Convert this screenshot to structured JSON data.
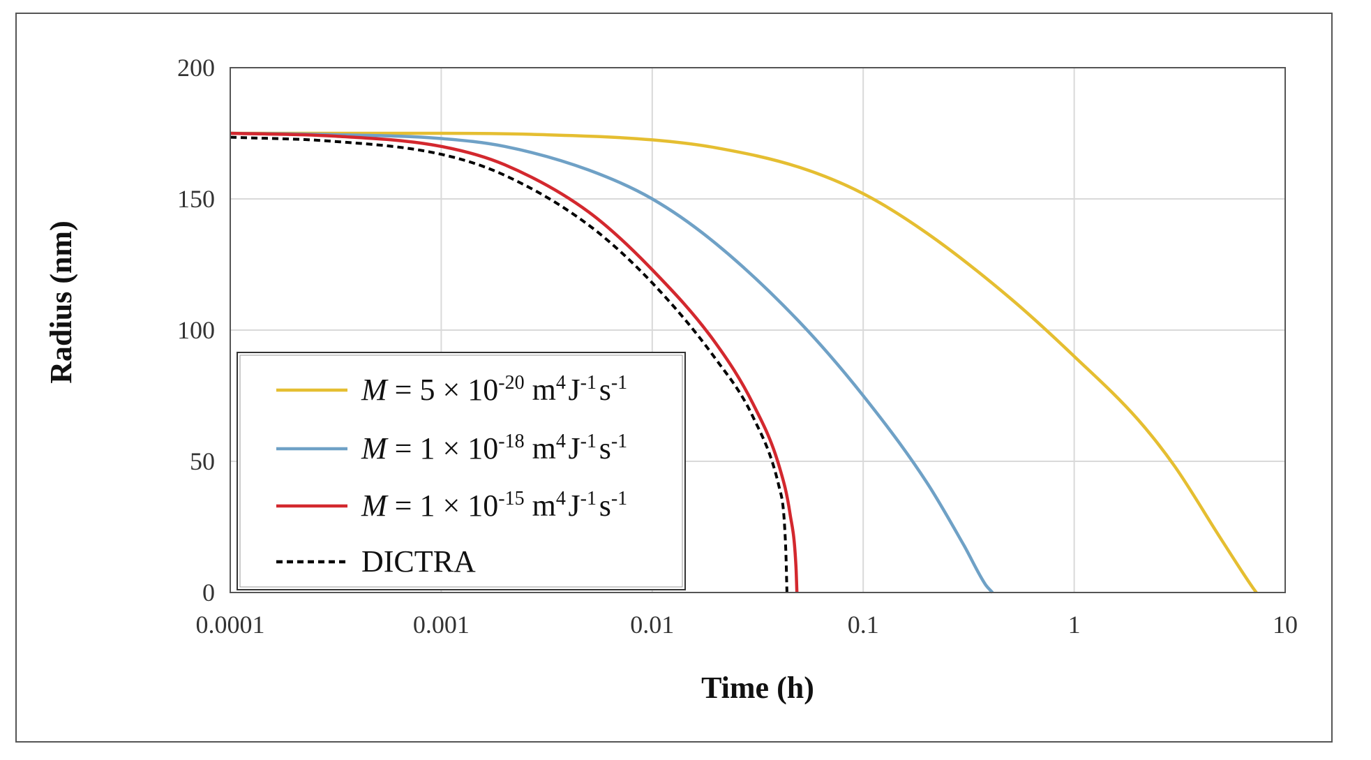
{
  "chart_data": {
    "type": "line",
    "title": "",
    "xlabel": "Time (h)",
    "ylabel": "Radius (nm)",
    "xscale": "log",
    "xlim": [
      0.0001,
      10
    ],
    "ylim": [
      0,
      200
    ],
    "x_ticks": [
      "0.0001",
      "0.001",
      "0.01",
      "0.1",
      "1",
      "10"
    ],
    "y_ticks": [
      "0",
      "50",
      "100",
      "150",
      "200"
    ],
    "grid": true,
    "legend_position": "bottom-left",
    "series": [
      {
        "name": "M = 5 × 10-20 m4J-1s-1",
        "label_parts": {
          "sym": "M",
          "base": " = 5 × 10",
          "exp": "-20",
          "unit": [
            [
              "m",
              "4"
            ],
            [
              "J",
              "-1"
            ],
            [
              "s",
              "-1"
            ]
          ]
        },
        "color": "#E5BE31",
        "dash": "solid",
        "points": [
          [
            0.0001,
            175
          ],
          [
            0.0003,
            175
          ],
          [
            0.001,
            175
          ],
          [
            0.003,
            174.5
          ],
          [
            0.01,
            172.5
          ],
          [
            0.02,
            169.5
          ],
          [
            0.05,
            162
          ],
          [
            0.1,
            152
          ],
          [
            0.2,
            137
          ],
          [
            0.5,
            112
          ],
          [
            1,
            90
          ],
          [
            2,
            66
          ],
          [
            3,
            48
          ],
          [
            5,
            20
          ],
          [
            7,
            2
          ],
          [
            7.3,
            0
          ]
        ]
      },
      {
        "name": "M = 1 × 10-18 m4J-1s-1",
        "label_parts": {
          "sym": "M",
          "base": " = 1 × 10",
          "exp": "-18",
          "unit": [
            [
              "m",
              "4"
            ],
            [
              "J",
              "-1"
            ],
            [
              "s",
              "-1"
            ]
          ]
        },
        "color": "#6FA1C6",
        "dash": "solid",
        "points": [
          [
            0.0001,
            175
          ],
          [
            0.0003,
            174.5
          ],
          [
            0.001,
            173
          ],
          [
            0.002,
            170
          ],
          [
            0.005,
            161
          ],
          [
            0.01,
            150
          ],
          [
            0.02,
            133
          ],
          [
            0.05,
            103
          ],
          [
            0.1,
            75
          ],
          [
            0.2,
            42
          ],
          [
            0.3,
            18
          ],
          [
            0.38,
            3
          ],
          [
            0.41,
            0
          ]
        ]
      },
      {
        "name": "M = 1 × 10-15 m4J-1s-1",
        "label_parts": {
          "sym": "M",
          "base": " = 1 × 10",
          "exp": "-15",
          "unit": [
            [
              "m",
              "4"
            ],
            [
              "J",
              "-1"
            ],
            [
              "s",
              "-1"
            ]
          ]
        },
        "color": "#D3282E",
        "dash": "solid",
        "points": [
          [
            0.0001,
            175
          ],
          [
            0.0003,
            174
          ],
          [
            0.001,
            170
          ],
          [
            0.002,
            163
          ],
          [
            0.005,
            145
          ],
          [
            0.01,
            123
          ],
          [
            0.02,
            95
          ],
          [
            0.03,
            72
          ],
          [
            0.04,
            48
          ],
          [
            0.045,
            30
          ],
          [
            0.048,
            10
          ],
          [
            0.0485,
            0
          ]
        ]
      },
      {
        "name": "DICTRA",
        "label_parts": {
          "sym": "",
          "base": "DICTRA",
          "exp": "",
          "unit": []
        },
        "color": "#000000",
        "dash": "dashed",
        "points": [
          [
            0.0001,
            173.5
          ],
          [
            0.0003,
            172
          ],
          [
            0.001,
            167
          ],
          [
            0.002,
            159
          ],
          [
            0.005,
            140
          ],
          [
            0.01,
            118
          ],
          [
            0.02,
            89
          ],
          [
            0.03,
            67
          ],
          [
            0.04,
            40
          ],
          [
            0.042,
            30
          ],
          [
            0.043,
            15
          ],
          [
            0.0435,
            0
          ]
        ]
      }
    ]
  }
}
